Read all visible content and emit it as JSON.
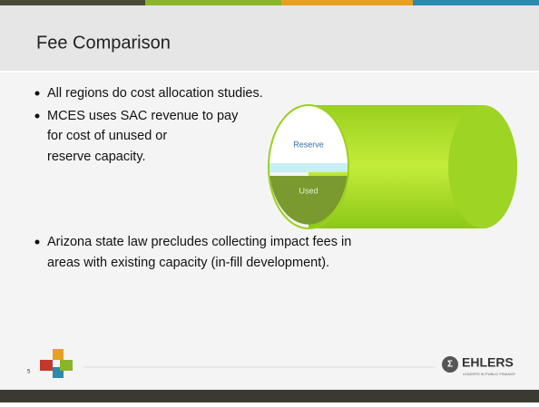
{
  "header": {
    "title": "Fee Comparison"
  },
  "bullets": [
    "All regions do cost allocation studies.",
    "MCES uses SAC revenue to pay",
    "Arizona state law precludes collecting impact fees in"
  ],
  "bullet_continuations": {
    "1": [
      "for cost of unused or",
      "reserve capacity."
    ],
    "2": [
      "areas with existing capacity (in-fill development)."
    ]
  },
  "diagram": {
    "top_label": "Reserve",
    "bottom_label": "Used"
  },
  "footer": {
    "page_number": "5",
    "logo_name": "EHLERS",
    "logo_tagline": "LEADERS IN PUBLIC FINANCE"
  }
}
